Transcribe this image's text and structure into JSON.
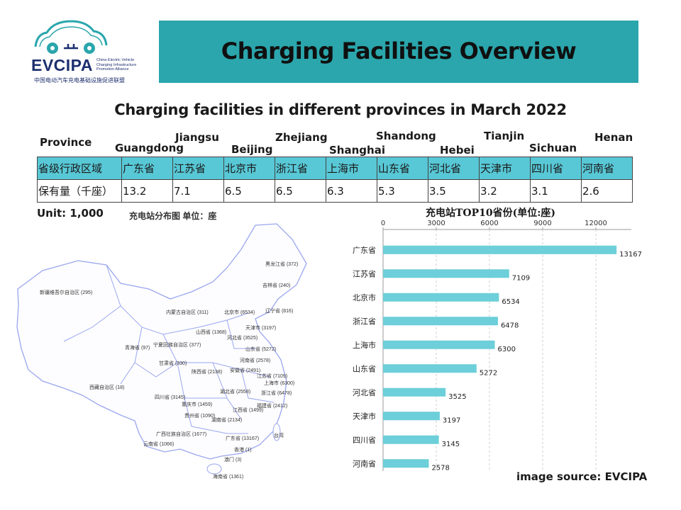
{
  "logo": {
    "wordmark": "EVCIPA",
    "english": [
      "China Electric Vehicle",
      "Charging Infrastructure",
      "Promotion Alliance"
    ],
    "chinese": "中国电动汽车充电基础设施促进联盟"
  },
  "header": {
    "title": "Charging Facilities Overview",
    "banner_color": "#2aa6ac"
  },
  "subtitle": "Charging facilities in different provinces in March 2022",
  "table": {
    "province_label": "Province",
    "english_names": [
      "Guangdong",
      "Jiangsu",
      "Beijing",
      "Zhejiang",
      "Shanghai",
      "Shandong",
      "Hebei",
      "Tianjin",
      "Sichuan",
      "Henan"
    ],
    "row1_label": "省级行政区域",
    "provinces_cn": [
      "广东省",
      "江苏省",
      "北京市",
      "浙江省",
      "上海市",
      "山东省",
      "河北省",
      "天津市",
      "四川省",
      "河南省"
    ],
    "row2_label": "保有量（千座）",
    "values": [
      "13.2",
      "7.1",
      "6.5",
      "6.5",
      "6.3",
      "5.3",
      "3.5",
      "3.2",
      "3.1",
      "2.6"
    ],
    "header_color": "#58c8d6"
  },
  "unit": "Unit: 1,000",
  "map": {
    "title": "充电站分布图  单位：座",
    "labels": [
      "黑龙江省 (372)",
      "吉林省 (240)",
      "辽宁省 (816)",
      "内蒙古自治区 (311)",
      "北京市 (6534)",
      "天津市 (3197)",
      "新疆维吾尔自治区 (295)",
      "河北省 (3525)",
      "山西省 (1368)",
      "宁夏回族自治区 (377)",
      "山东省 (5272)",
      "青海省 (97)",
      "甘肃省 (330)",
      "河南省 (2578)",
      "陕西省 (2138)",
      "安徽省 (2491)",
      "江苏省 (7109)",
      "上海市 (6300)",
      "西藏自治区 (18)",
      "四川省 (3145)",
      "湖北省 (2558)",
      "浙江省 (6478)",
      "重庆市 (1459)",
      "福建省 (2412)",
      "江西省 (1499)",
      "贵州省 (1090)",
      "湖南省 (2134)",
      "台湾",
      "广西壮族自治区 (1677)",
      "广东省 (13167)",
      "云南省 (1066)",
      "香港 (1)",
      "澳门 (3)",
      "海南省 (1361)"
    ],
    "line_color": "#9aa6ee"
  },
  "chart_data": {
    "type": "bar",
    "orientation": "horizontal",
    "title": "充电站TOP10省份(单位:座)",
    "categories": [
      "广东省",
      "江苏省",
      "北京市",
      "浙江省",
      "上海市",
      "山东省",
      "河北省",
      "天津市",
      "四川省",
      "河南省"
    ],
    "values": [
      13167,
      7109,
      6534,
      6478,
      6300,
      5272,
      3525,
      3197,
      3145,
      2578
    ],
    "xticks": [
      "0",
      "3000",
      "6000",
      "9000",
      "12000"
    ],
    "xlim": [
      0,
      14000
    ],
    "grid": true,
    "bar_color": "#6ccfd9",
    "xlabel": "",
    "ylabel": ""
  },
  "source": "image source: EVCIPA"
}
